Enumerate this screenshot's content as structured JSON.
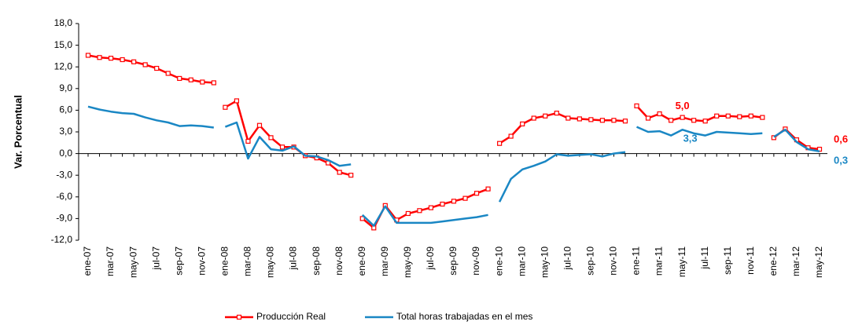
{
  "chart_data": {
    "type": "line",
    "y_label": "Var. Porcentual",
    "line_break_every": 12,
    "categories": [
      "ene-07",
      null,
      "mar-07",
      null,
      "may-07",
      null,
      "jul-07",
      null,
      "sep-07",
      null,
      "nov-07",
      null,
      "ene-08",
      null,
      "mar-08",
      null,
      "may-08",
      null,
      "jul-08",
      null,
      "sep-08",
      null,
      "nov-08",
      null,
      "ene-09",
      null,
      "mar-09",
      null,
      "may-09",
      null,
      "jul-09",
      null,
      "sep-09",
      null,
      "nov-09",
      null,
      "ene-10",
      null,
      "mar-10",
      null,
      "may-10",
      null,
      "jul-10",
      null,
      "sep-10",
      null,
      "nov-10",
      null,
      "ene-11",
      null,
      "mar-11",
      null,
      "may-11",
      null,
      "jul-11",
      null,
      "sep-11",
      null,
      "nov-11",
      null,
      "ene-12",
      null,
      "mar-12",
      null,
      "may-12"
    ],
    "series": [
      {
        "name": "Producción Real",
        "color": "#ff0000",
        "markers": true,
        "values": [
          13.6,
          13.3,
          13.2,
          13.0,
          12.7,
          12.3,
          11.8,
          11.1,
          10.4,
          10.2,
          9.9,
          9.8,
          6.4,
          7.3,
          1.7,
          3.9,
          2.2,
          0.9,
          0.9,
          -0.3,
          -0.6,
          -1.3,
          -2.6,
          -3.0,
          -9.0,
          -10.3,
          -7.2,
          -9.2,
          -8.3,
          -7.9,
          -7.5,
          -7.0,
          -6.6,
          -6.2,
          -5.5,
          -4.9,
          1.4,
          2.4,
          4.1,
          4.9,
          5.2,
          5.6,
          4.9,
          4.8,
          4.7,
          4.6,
          4.6,
          4.5,
          6.6,
          4.9,
          5.5,
          4.6,
          5.0,
          4.6,
          4.5,
          5.2,
          5.2,
          5.1,
          5.2,
          5.0,
          2.2,
          3.4,
          1.9,
          0.8,
          0.6
        ],
        "value_labels": [
          null,
          null,
          null,
          null,
          null,
          null,
          null,
          null,
          null,
          null,
          null,
          null,
          null,
          null,
          null,
          null,
          null,
          null,
          null,
          null,
          null,
          null,
          null,
          null,
          null,
          null,
          null,
          null,
          null,
          null,
          null,
          null,
          null,
          null,
          null,
          null,
          null,
          null,
          null,
          null,
          null,
          null,
          null,
          null,
          null,
          null,
          null,
          null,
          null,
          null,
          null,
          null,
          "5,0",
          null,
          null,
          null,
          null,
          null,
          null,
          null,
          null,
          null,
          null,
          null,
          "0,6"
        ]
      },
      {
        "name": "Total horas trabajadas en el mes",
        "color": "#1a87c4",
        "markers": false,
        "values": [
          6.5,
          6.1,
          5.8,
          5.6,
          5.5,
          5.0,
          4.6,
          4.3,
          3.8,
          3.9,
          3.8,
          3.6,
          3.7,
          4.3,
          -0.7,
          2.3,
          0.6,
          0.4,
          1.0,
          -0.3,
          -0.4,
          -0.9,
          -1.7,
          -1.5,
          -8.5,
          -10.0,
          -7.3,
          -9.6,
          -9.6,
          -9.6,
          -9.6,
          -9.4,
          -9.2,
          -9.0,
          -8.8,
          -8.5,
          -6.7,
          -3.5,
          -2.2,
          -1.7,
          -1.1,
          -0.1,
          -0.3,
          -0.2,
          -0.1,
          -0.4,
          0.0,
          0.2,
          3.7,
          3.0,
          3.1,
          2.5,
          3.3,
          2.8,
          2.5,
          3.0,
          2.9,
          2.8,
          2.7,
          2.8,
          2.3,
          3.3,
          1.6,
          0.6,
          0.3
        ],
        "value_labels": [
          null,
          null,
          null,
          null,
          null,
          null,
          null,
          null,
          null,
          null,
          null,
          null,
          null,
          null,
          null,
          null,
          null,
          null,
          null,
          null,
          null,
          null,
          null,
          null,
          null,
          null,
          null,
          null,
          null,
          null,
          null,
          null,
          null,
          null,
          null,
          null,
          null,
          null,
          null,
          null,
          null,
          null,
          null,
          null,
          null,
          null,
          null,
          null,
          null,
          null,
          null,
          null,
          "3,3",
          null,
          null,
          null,
          null,
          null,
          null,
          null,
          null,
          null,
          null,
          null,
          "0,3"
        ]
      }
    ],
    "ylim": [
      -12,
      18
    ],
    "yticks": [
      {
        "value": -12,
        "label": "-12,0"
      },
      {
        "value": -9,
        "label": "-9,0"
      },
      {
        "value": -6,
        "label": "-6,0"
      },
      {
        "value": -3,
        "label": "-3,0"
      },
      {
        "value": 0,
        "label": "0,0"
      },
      {
        "value": 3,
        "label": "3,0"
      },
      {
        "value": 6,
        "label": "6,0"
      },
      {
        "value": 9,
        "label": "9,0"
      },
      {
        "value": 12,
        "label": "12,0"
      },
      {
        "value": 15,
        "label": "15,0"
      },
      {
        "value": 18,
        "label": "18,0"
      }
    ],
    "legend": "bottom"
  }
}
